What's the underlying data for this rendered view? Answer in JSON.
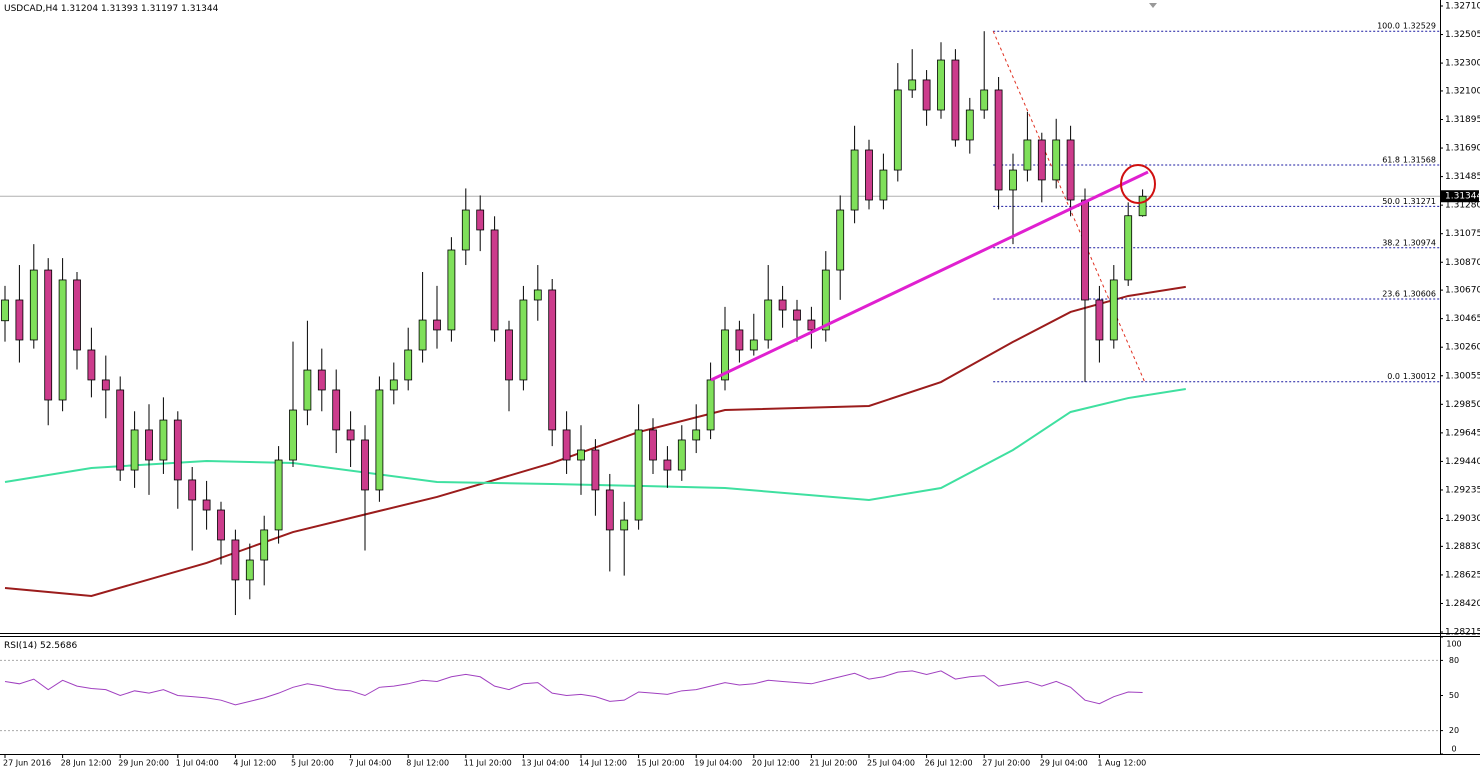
{
  "chart_data": {
    "type": "candlestick",
    "symbol": "USDCAD,H4",
    "ylim": [
      1.28208,
      1.32753
    ],
    "yticks": [
      {
        "value": 1.3271,
        "label": "1.32710"
      },
      1.32505,
      {
        "value": 1.323,
        "label": "1.32300"
      },
      {
        "value": 1.321,
        "label": "1.32100"
      },
      1.31895,
      {
        "value": 1.3169,
        "label": "1.31690"
      },
      1.31485,
      {
        "value": 1.3128,
        "label": "1.31280"
      },
      1.31075,
      {
        "value": 1.3087,
        "label": "1.30870"
      },
      {
        "value": 1.3067,
        "label": "1.30670"
      },
      1.30465,
      {
        "value": 1.3026,
        "label": "1.30260"
      },
      1.30055,
      {
        "value": 1.2985,
        "label": "1.29850"
      },
      1.29645,
      {
        "value": 1.2944,
        "label": "1.29440"
      },
      1.29235,
      {
        "value": 1.2903,
        "label": "1.29030"
      },
      {
        "value": 1.2883,
        "label": "1.28830"
      },
      1.28625,
      {
        "value": 1.2842,
        "label": "1.28420"
      },
      1.28215
    ],
    "categories": [
      "27 Jun 2016",
      null,
      null,
      null,
      "28 Jun 12:00",
      null,
      null,
      null,
      "29 Jun 20:00",
      null,
      null,
      null,
      "1 Jul 04:00",
      null,
      null,
      null,
      "4 Jul 12:00",
      null,
      null,
      null,
      "5 Jul 20:00",
      null,
      null,
      null,
      "7 Jul 04:00",
      null,
      null,
      null,
      "8 Jul 12:00",
      null,
      null,
      null,
      "11 Jul 20:00",
      null,
      null,
      null,
      "13 Jul 04:00",
      null,
      null,
      null,
      "14 Jul 12:00",
      null,
      null,
      null,
      "15 Jul 20:00",
      null,
      null,
      null,
      "19 Jul 04:00",
      null,
      null,
      null,
      "20 Jul 12:00",
      null,
      null,
      null,
      "21 Jul 20:00",
      null,
      null,
      null,
      "25 Jul 04:00",
      null,
      null,
      null,
      "26 Jul 12:00",
      null,
      null,
      null,
      "27 Jul 20:00",
      null,
      null,
      null,
      "29 Jul 04:00",
      null,
      null,
      null,
      "1 Aug 12:00",
      null,
      null,
      null
    ],
    "ohlc": [
      [
        1.3045,
        1.307,
        1.303,
        1.30599
      ],
      [
        1.30599,
        1.3085,
        1.3015,
        1.30312
      ],
      [
        1.30312,
        1.31,
        1.3025,
        1.30814
      ],
      [
        1.30814,
        1.309,
        1.297,
        1.29881
      ],
      [
        1.29881,
        1.309,
        1.298,
        1.30743
      ],
      [
        1.30743,
        1.308,
        1.301,
        1.3024
      ],
      [
        1.3024,
        1.304,
        1.299,
        1.30025
      ],
      [
        1.30025,
        1.302,
        1.2975,
        1.29953
      ],
      [
        1.29953,
        1.3005,
        1.293,
        1.29378
      ],
      [
        1.29378,
        1.298,
        1.2925,
        1.29666
      ],
      [
        1.29666,
        1.2985,
        1.292,
        1.2945
      ],
      [
        1.2945,
        1.299,
        1.2935,
        1.29737
      ],
      [
        1.29737,
        1.298,
        1.291,
        1.29307
      ],
      [
        1.29307,
        1.294,
        1.288,
        1.29163
      ],
      [
        1.29163,
        1.293,
        1.2895,
        1.29091
      ],
      [
        1.29091,
        1.2915,
        1.287,
        1.28876
      ],
      [
        1.28876,
        1.2895,
        1.28337,
        1.28589
      ],
      [
        1.28589,
        1.2885,
        1.2845,
        1.28732
      ],
      [
        1.28732,
        1.2905,
        1.2855,
        1.28948
      ],
      [
        1.28948,
        1.2955,
        1.2885,
        1.2945
      ],
      [
        1.2945,
        1.303,
        1.294,
        1.29809
      ],
      [
        1.29809,
        1.3045,
        1.297,
        1.30096
      ],
      [
        1.30096,
        1.3025,
        1.298,
        1.29953
      ],
      [
        1.29953,
        1.301,
        1.295,
        1.29666
      ],
      [
        1.29666,
        1.298,
        1.294,
        1.29594
      ],
      [
        1.29594,
        1.297,
        1.288,
        1.29235
      ],
      [
        1.29235,
        1.3005,
        1.2915,
        1.29953
      ],
      [
        1.29953,
        1.3015,
        1.2985,
        1.30025
      ],
      [
        1.30025,
        1.304,
        1.2995,
        1.3024
      ],
      [
        1.3024,
        1.308,
        1.3015,
        1.30455
      ],
      [
        1.30455,
        1.307,
        1.3025,
        1.30384
      ],
      [
        1.30384,
        1.3105,
        1.303,
        1.30958
      ],
      [
        1.30958,
        1.314,
        1.3085,
        1.31245
      ],
      [
        1.31245,
        1.3135,
        1.3095,
        1.31102
      ],
      [
        1.31102,
        1.312,
        1.303,
        1.30384
      ],
      [
        1.30384,
        1.3045,
        1.298,
        1.30025
      ],
      [
        1.30025,
        1.307,
        1.2995,
        1.30599
      ],
      [
        1.30599,
        1.3085,
        1.3045,
        1.30671
      ],
      [
        1.30671,
        1.3075,
        1.2955,
        1.29666
      ],
      [
        1.29666,
        1.298,
        1.2935,
        1.2945
      ],
      [
        1.2945,
        1.297,
        1.292,
        1.29522
      ],
      [
        1.29522,
        1.296,
        1.2905,
        1.29235
      ],
      [
        1.29235,
        1.2935,
        1.2865,
        1.28948
      ],
      [
        1.28948,
        1.2915,
        1.2862,
        1.29019
      ],
      [
        1.29019,
        1.2985,
        1.2895,
        1.29666
      ],
      [
        1.29666,
        1.2975,
        1.2935,
        1.2945
      ],
      [
        1.2945,
        1.2955,
        1.2925,
        1.29378
      ],
      [
        1.29378,
        1.297,
        1.293,
        1.29594
      ],
      [
        1.29594,
        1.2985,
        1.295,
        1.29666
      ],
      [
        1.29666,
        1.3015,
        1.296,
        1.30025
      ],
      [
        1.30025,
        1.3055,
        1.2995,
        1.30384
      ],
      [
        1.30384,
        1.3045,
        1.3015,
        1.3024
      ],
      [
        1.3024,
        1.305,
        1.302,
        1.30312
      ],
      [
        1.30312,
        1.3085,
        1.3025,
        1.30599
      ],
      [
        1.30599,
        1.307,
        1.304,
        1.30527
      ],
      [
        1.30527,
        1.306,
        1.303,
        1.30455
      ],
      [
        1.30455,
        1.3055,
        1.3025,
        1.30384
      ],
      [
        1.30384,
        1.3095,
        1.303,
        1.30814
      ],
      [
        1.30814,
        1.3135,
        1.306,
        1.31245
      ],
      [
        1.31245,
        1.3185,
        1.3115,
        1.31676
      ],
      [
        1.31676,
        1.3175,
        1.3125,
        1.31317
      ],
      [
        1.31317,
        1.3165,
        1.3125,
        1.31532
      ],
      [
        1.31532,
        1.323,
        1.3145,
        1.32107
      ],
      [
        1.32107,
        1.324,
        1.3205,
        1.32179
      ],
      [
        1.32179,
        1.3225,
        1.3185,
        1.31963
      ],
      [
        1.31963,
        1.3245,
        1.319,
        1.32322
      ],
      [
        1.32322,
        1.324,
        1.317,
        1.31748
      ],
      [
        1.31748,
        1.3205,
        1.3165,
        1.31963
      ],
      [
        1.31963,
        1.32529,
        1.319,
        1.32107
      ],
      [
        1.32107,
        1.322,
        1.3125,
        1.31389
      ],
      [
        1.31389,
        1.3165,
        1.31,
        1.31532
      ],
      [
        1.31532,
        1.3195,
        1.3145,
        1.31748
      ],
      [
        1.31748,
        1.318,
        1.313,
        1.31461
      ],
      [
        1.31461,
        1.319,
        1.314,
        1.31748
      ],
      [
        1.31748,
        1.3185,
        1.312,
        1.31317
      ],
      [
        1.31317,
        1.314,
        1.30012,
        1.30599
      ],
      [
        1.30599,
        1.307,
        1.3015,
        1.30312
      ],
      [
        1.30312,
        1.3085,
        1.3025,
        1.30743
      ],
      [
        1.30743,
        1.313,
        1.307,
        1.31204
      ],
      [
        1.31204,
        1.31393,
        1.31197,
        1.31344
      ]
    ],
    "up_color": "#7fe05a",
    "down_color": "#cc3c8c",
    "moving_averages": [
      {
        "color": "#9b1c1c",
        "x": [
          0,
          6,
          14,
          20,
          30,
          38,
          44,
          50,
          60,
          65,
          70,
          74,
          78,
          82
        ],
        "values": [
          1.28531,
          1.28474,
          1.28711,
          1.28933,
          1.29185,
          1.29429,
          1.29651,
          1.29809,
          1.29838,
          1.3001,
          1.30298,
          1.30513,
          1.30628,
          1.30693
        ]
      },
      {
        "color": "#3fe0a0",
        "x": [
          0,
          6,
          14,
          20,
          30,
          38,
          44,
          50,
          60,
          65,
          70,
          74,
          78,
          82
        ],
        "values": [
          1.29292,
          1.29393,
          1.29443,
          1.29429,
          1.29292,
          1.29278,
          1.29264,
          1.29249,
          1.29163,
          1.29249,
          1.29522,
          1.29795,
          1.29895,
          1.2996
        ]
      }
    ],
    "fibonacci": {
      "color": "#1a1aa0",
      "start_index": 68,
      "levels": [
        {
          "label": "100.0",
          "value": 1.32529
        },
        {
          "label": "61.8",
          "value": 1.31568
        },
        {
          "label": "50.0",
          "value": 1.31271
        },
        {
          "label": "38.2",
          "value": 1.30974
        },
        {
          "label": "23.6",
          "value": 1.30606
        },
        {
          "label": "0.0",
          "value": 1.30012
        }
      ]
    },
    "rsi": {
      "title": "RSI(14)",
      "color": "#a040c0",
      "ylim": [
        0,
        100
      ],
      "yticks": [
        100,
        80,
        50,
        20,
        0
      ],
      "levels": [
        80,
        20
      ],
      "values": [
        62,
        60,
        64,
        55,
        63,
        58,
        56,
        55,
        50,
        54,
        52,
        55,
        50,
        49,
        48,
        46,
        42,
        45,
        48,
        52,
        57,
        60,
        58,
        55,
        54,
        50,
        57,
        58,
        60,
        63,
        62,
        66,
        68,
        66,
        58,
        55,
        60,
        61,
        52,
        50,
        51,
        49,
        45,
        46,
        53,
        52,
        51,
        54,
        55,
        58,
        61,
        59,
        60,
        63,
        62,
        61,
        60,
        63,
        66,
        69,
        64,
        66,
        70,
        71,
        68,
        71,
        64,
        66,
        67,
        58,
        60,
        62,
        58,
        62,
        57,
        46,
        43,
        49,
        53,
        52.5686
      ]
    }
  }
}
